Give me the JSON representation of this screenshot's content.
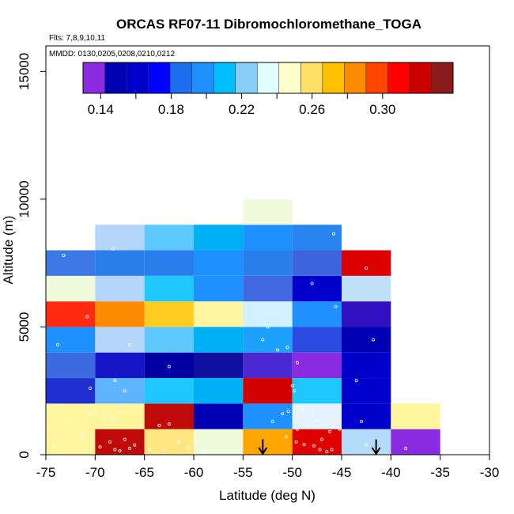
{
  "chart_data": {
    "type": "heatmap",
    "title": "ORCAS RF07-11 Dibromochloromethane_TOGA",
    "flights_note": "Flts: 7,8,9,10,11",
    "dates_note": "MMDD: 0130,0205,0208,0210,0212",
    "xlabel": "Latitude (deg N)",
    "ylabel": "Altitude (m)",
    "xlim": [
      -75,
      -30
    ],
    "ylim": [
      0,
      16000
    ],
    "xticks": [
      "-75",
      "-70",
      "-65",
      "-60",
      "-55",
      "-50",
      "-45",
      "-40",
      "-35",
      "-30"
    ],
    "xtick_values": [
      -75,
      -70,
      -65,
      -60,
      -55,
      -50,
      -45,
      -40,
      -35,
      -30
    ],
    "yticks": [
      "0",
      "5000",
      "10000",
      "15000"
    ],
    "ytick_values": [
      0,
      5000,
      10000,
      15000
    ],
    "colorbar": {
      "range": [
        0.13,
        0.34
      ],
      "colors": [
        "#8a2be2",
        "#0000b3",
        "#0000cd",
        "#0000ff",
        "#1e6ff0",
        "#1e90ff",
        "#00bfff",
        "#87cefa",
        "#e0ffff",
        "#ffffcc",
        "#ffe066",
        "#ffc000",
        "#ff8c00",
        "#ff4500",
        "#ff0000",
        "#cd0000",
        "#8b1a1a"
      ],
      "tick_labels": [
        "0.14",
        "0.18",
        "0.22",
        "0.26",
        "0.30"
      ],
      "tick_values": [
        0.14,
        0.18,
        0.22,
        0.26,
        0.3
      ]
    },
    "cell_width_deg": 5,
    "cell_height_m": 1000,
    "cells": [
      {
        "x0": -75,
        "y0": 0,
        "color": "#fff59d",
        "value": 0.25
      },
      {
        "x0": -75,
        "y0": 1000,
        "color": "#fff59d",
        "value": 0.25
      },
      {
        "x0": -75,
        "y0": 2000,
        "color": "#1f2fd0",
        "value": 0.16
      },
      {
        "x0": -75,
        "y0": 3000,
        "color": "#3c6be0",
        "value": 0.18
      },
      {
        "x0": -75,
        "y0": 4000,
        "color": "#1e90ff",
        "value": 0.19
      },
      {
        "x0": -75,
        "y0": 5000,
        "color": "#ff2a10",
        "value": 0.31
      },
      {
        "x0": -75,
        "y0": 6000,
        "color": "#f0fbdc",
        "value": 0.23
      },
      {
        "x0": -75,
        "y0": 7000,
        "color": "#3c78e6",
        "value": 0.18
      },
      {
        "x0": -70,
        "y0": 0,
        "color": "#c00a0a",
        "value": 0.32
      },
      {
        "x0": -70,
        "y0": 1000,
        "color": "#fff59d",
        "value": 0.25
      },
      {
        "x0": -70,
        "y0": 2000,
        "color": "#5fb4ff",
        "value": 0.2
      },
      {
        "x0": -70,
        "y0": 3000,
        "color": "#1616c8",
        "value": 0.15
      },
      {
        "x0": -70,
        "y0": 4000,
        "color": "#b4d6fa",
        "value": 0.21
      },
      {
        "x0": -70,
        "y0": 5000,
        "color": "#ff8c00",
        "value": 0.28
      },
      {
        "x0": -70,
        "y0": 6000,
        "color": "#b4d6fa",
        "value": 0.21
      },
      {
        "x0": -70,
        "y0": 7000,
        "color": "#2a7eec",
        "value": 0.18
      },
      {
        "x0": -70,
        "y0": 8000,
        "color": "#b4d6fa",
        "value": 0.21
      },
      {
        "x0": -65,
        "y0": 0,
        "color": "#ffe680",
        "value": 0.26
      },
      {
        "x0": -65,
        "y0": 1000,
        "color": "#c00a0a",
        "value": 0.32
      },
      {
        "x0": -65,
        "y0": 2000,
        "color": "#1ec8ff",
        "value": 0.2
      },
      {
        "x0": -65,
        "y0": 3000,
        "color": "#0000a0",
        "value": 0.14
      },
      {
        "x0": -65,
        "y0": 4000,
        "color": "#5ec8ff",
        "value": 0.2
      },
      {
        "x0": -65,
        "y0": 5000,
        "color": "#ffcc20",
        "value": 0.27
      },
      {
        "x0": -65,
        "y0": 6000,
        "color": "#1ec8ff",
        "value": 0.2
      },
      {
        "x0": -65,
        "y0": 7000,
        "color": "#2a7eec",
        "value": 0.18
      },
      {
        "x0": -65,
        "y0": 8000,
        "color": "#5ec8ff",
        "value": 0.2
      },
      {
        "x0": -60,
        "y0": 0,
        "color": "#f0fbdc",
        "value": 0.23
      },
      {
        "x0": -60,
        "y0": 1000,
        "color": "#0000b3",
        "value": 0.14
      },
      {
        "x0": -60,
        "y0": 2000,
        "color": "#00b0f5",
        "value": 0.2
      },
      {
        "x0": -60,
        "y0": 3000,
        "color": "#1010a0",
        "value": 0.14
      },
      {
        "x0": -60,
        "y0": 4000,
        "color": "#00b0f5",
        "value": 0.2
      },
      {
        "x0": -60,
        "y0": 5000,
        "color": "#fff5a0",
        "value": 0.25
      },
      {
        "x0": -60,
        "y0": 6000,
        "color": "#1e90ff",
        "value": 0.19
      },
      {
        "x0": -60,
        "y0": 7000,
        "color": "#1e90ff",
        "value": 0.19
      },
      {
        "x0": -60,
        "y0": 8000,
        "color": "#00b0f5",
        "value": 0.2
      },
      {
        "x0": -55,
        "y0": 0,
        "color": "#ffa500",
        "value": 0.28
      },
      {
        "x0": -55,
        "y0": 1000,
        "color": "#1e90ff",
        "value": 0.19
      },
      {
        "x0": -55,
        "y0": 2000,
        "color": "#d20000",
        "value": 0.31
      },
      {
        "x0": -55,
        "y0": 3000,
        "color": "#4a2ad0",
        "value": 0.15
      },
      {
        "x0": -55,
        "y0": 4000,
        "color": "#1ea0ff",
        "value": 0.19
      },
      {
        "x0": -55,
        "y0": 5000,
        "color": "#d2f0ff",
        "value": 0.22
      },
      {
        "x0": -55,
        "y0": 6000,
        "color": "#4169e1",
        "value": 0.17
      },
      {
        "x0": -55,
        "y0": 7000,
        "color": "#2a7eec",
        "value": 0.18
      },
      {
        "x0": -55,
        "y0": 8000,
        "color": "#1e90ff",
        "value": 0.19
      },
      {
        "x0": -55,
        "y0": 9000,
        "color": "#f0fbdc",
        "value": 0.23
      },
      {
        "x0": -50,
        "y0": 0,
        "color": "#e00000",
        "value": 0.31
      },
      {
        "x0": -50,
        "y0": 1000,
        "color": "#e6f2ff",
        "value": 0.22
      },
      {
        "x0": -50,
        "y0": 2000,
        "color": "#1ec8ff",
        "value": 0.2
      },
      {
        "x0": -50,
        "y0": 3000,
        "color": "#8a2be2",
        "value": 0.13
      },
      {
        "x0": -50,
        "y0": 4000,
        "color": "#2a4ae0",
        "value": 0.16
      },
      {
        "x0": -50,
        "y0": 5000,
        "color": "#1e90ff",
        "value": 0.19
      },
      {
        "x0": -50,
        "y0": 6000,
        "color": "#0000cd",
        "value": 0.15
      },
      {
        "x0": -50,
        "y0": 7000,
        "color": "#3c64dc",
        "value": 0.17
      },
      {
        "x0": -50,
        "y0": 8000,
        "color": "#2a84f0",
        "value": 0.18
      },
      {
        "x0": -45,
        "y0": 0,
        "color": "#b4dcfa",
        "value": 0.21
      },
      {
        "x0": -45,
        "y0": 1000,
        "color": "#0000cd",
        "value": 0.15
      },
      {
        "x0": -45,
        "y0": 2000,
        "color": "#0000cd",
        "value": 0.15
      },
      {
        "x0": -45,
        "y0": 3000,
        "color": "#0000cd",
        "value": 0.15
      },
      {
        "x0": -45,
        "y0": 4000,
        "color": "#0000b3",
        "value": 0.14
      },
      {
        "x0": -45,
        "y0": 5000,
        "color": "#3010c0",
        "value": 0.14
      },
      {
        "x0": -45,
        "y0": 6000,
        "color": "#c0e0fa",
        "value": 0.21
      },
      {
        "x0": -45,
        "y0": 7000,
        "color": "#dc0000",
        "value": 0.31
      },
      {
        "x0": -40,
        "y0": 0,
        "color": "#8a2be2",
        "value": 0.13
      },
      {
        "x0": -40,
        "y0": 1000,
        "color": "#fff59d",
        "value": 0.25
      }
    ],
    "arrows_latitude": [
      -53,
      -41.5
    ],
    "sample_points": [
      [
        -74.2,
        350
      ],
      [
        -73.5,
        1500
      ],
      [
        -71.2,
        700
      ],
      [
        -72.5,
        1400
      ],
      [
        -70.5,
        1600
      ],
      [
        -69.5,
        300
      ],
      [
        -68.5,
        500
      ],
      [
        -68.0,
        200
      ],
      [
        -67.5,
        150
      ],
      [
        -66.5,
        250
      ],
      [
        -66.0,
        380
      ],
      [
        -67.0,
        600
      ],
      [
        -68.2,
        1400
      ],
      [
        -67.5,
        1700
      ],
      [
        -69.0,
        1500
      ],
      [
        -70.5,
        2600
      ],
      [
        -68.0,
        2900
      ],
      [
        -67.0,
        2500
      ],
      [
        -66.5,
        4300
      ],
      [
        -70.8,
        5400
      ],
      [
        -73.8,
        4300
      ],
      [
        -73.2,
        7800
      ],
      [
        -68.2,
        8050
      ],
      [
        -62.5,
        3450
      ],
      [
        -63.5,
        1150
      ],
      [
        -62.5,
        1200
      ],
      [
        -61.5,
        500
      ],
      [
        -60.5,
        250
      ],
      [
        -64.5,
        200
      ],
      [
        -63.0,
        180
      ],
      [
        -59.0,
        120
      ],
      [
        -52.0,
        1300
      ],
      [
        -51.0,
        1600
      ],
      [
        -52.5,
        5000
      ],
      [
        -53.0,
        4500
      ],
      [
        -51.5,
        4100
      ],
      [
        -50.5,
        4200
      ],
      [
        -49.5,
        3600
      ],
      [
        -50.0,
        2700
      ],
      [
        -49.8,
        2500
      ],
      [
        -50.4,
        1700
      ],
      [
        -49.0,
        1750
      ],
      [
        -48.0,
        1550
      ],
      [
        -47.5,
        1350
      ],
      [
        -48.5,
        1100
      ],
      [
        -49.5,
        1000
      ],
      [
        -50.6,
        700
      ],
      [
        -49.6,
        500
      ],
      [
        -48.8,
        400
      ],
      [
        -47.8,
        350
      ],
      [
        -47.2,
        200
      ],
      [
        -46.5,
        120
      ],
      [
        -46.0,
        200
      ],
      [
        -47.0,
        600
      ],
      [
        -46.2,
        900
      ],
      [
        -45.2,
        1000
      ],
      [
        -45.6,
        5800
      ],
      [
        -48.0,
        6700
      ],
      [
        -45.8,
        8650
      ],
      [
        -42.5,
        7300
      ],
      [
        -41.8,
        4500
      ],
      [
        -43.5,
        2900
      ],
      [
        -43.0,
        1300
      ],
      [
        -42.5,
        400
      ],
      [
        -38.5,
        250
      ]
    ]
  }
}
